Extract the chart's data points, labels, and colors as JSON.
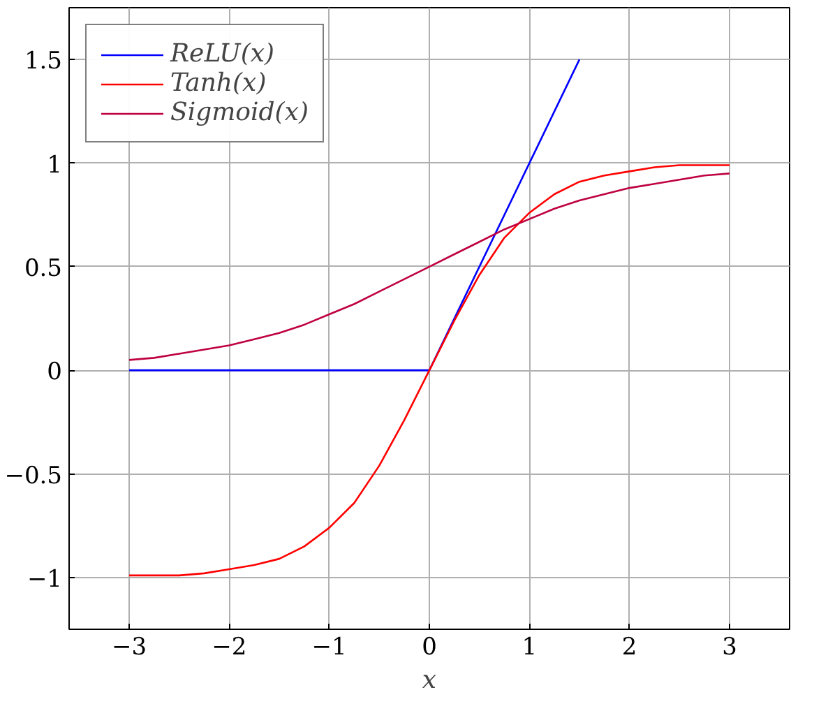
{
  "chart_data": {
    "type": "line",
    "xlabel": "x",
    "xlim": [
      -3.6,
      3.6
    ],
    "ylim": [
      -1.25,
      1.75
    ],
    "xticks": [
      {
        "value": -3,
        "label": "−3"
      },
      {
        "value": -2,
        "label": "−2"
      },
      {
        "value": -1,
        "label": "−1"
      },
      0,
      1,
      2,
      3
    ],
    "yticks": [
      {
        "value": -1,
        "label": "−1"
      },
      {
        "value": -0.5,
        "label": "−0.5"
      },
      0,
      0.5,
      1,
      1.5
    ],
    "grid": true,
    "legend": "top left",
    "series": [
      {
        "name": "ReLU(x)",
        "color": "#0000ff",
        "x": [
          -3,
          0,
          1.5
        ],
        "values": [
          0,
          0,
          1.5
        ]
      },
      {
        "name": "Tanh(x)",
        "color": "#ff0000",
        "x": [
          -3,
          -2.75,
          -2.5,
          -2.25,
          -2,
          -1.75,
          -1.5,
          -1.25,
          -1,
          -0.75,
          -0.5,
          -0.25,
          0,
          0.25,
          0.5,
          0.75,
          1,
          1.25,
          1.5,
          1.75,
          2,
          2.25,
          2.5,
          2.75,
          3
        ],
        "values": [
          -0.99,
          -0.99,
          -0.99,
          -0.98,
          -0.96,
          -0.94,
          -0.91,
          -0.85,
          -0.76,
          -0.64,
          -0.46,
          -0.24,
          0,
          0.24,
          0.46,
          0.64,
          0.76,
          0.85,
          0.91,
          0.94,
          0.96,
          0.98,
          0.99,
          0.99,
          0.99
        ]
      },
      {
        "name": "Sigmoid(x)",
        "color": "#bf0040",
        "x": [
          -3,
          -2.75,
          -2.5,
          -2.25,
          -2,
          -1.75,
          -1.5,
          -1.25,
          -1,
          -0.75,
          -0.5,
          -0.25,
          0,
          0.25,
          0.5,
          0.75,
          1,
          1.25,
          1.5,
          1.75,
          2,
          2.25,
          2.5,
          2.75,
          3
        ],
        "values": [
          0.05,
          0.06,
          0.08,
          0.1,
          0.12,
          0.15,
          0.18,
          0.22,
          0.27,
          0.32,
          0.38,
          0.44,
          0.5,
          0.56,
          0.62,
          0.68,
          0.73,
          0.78,
          0.82,
          0.85,
          0.88,
          0.9,
          0.92,
          0.94,
          0.95
        ]
      }
    ]
  }
}
